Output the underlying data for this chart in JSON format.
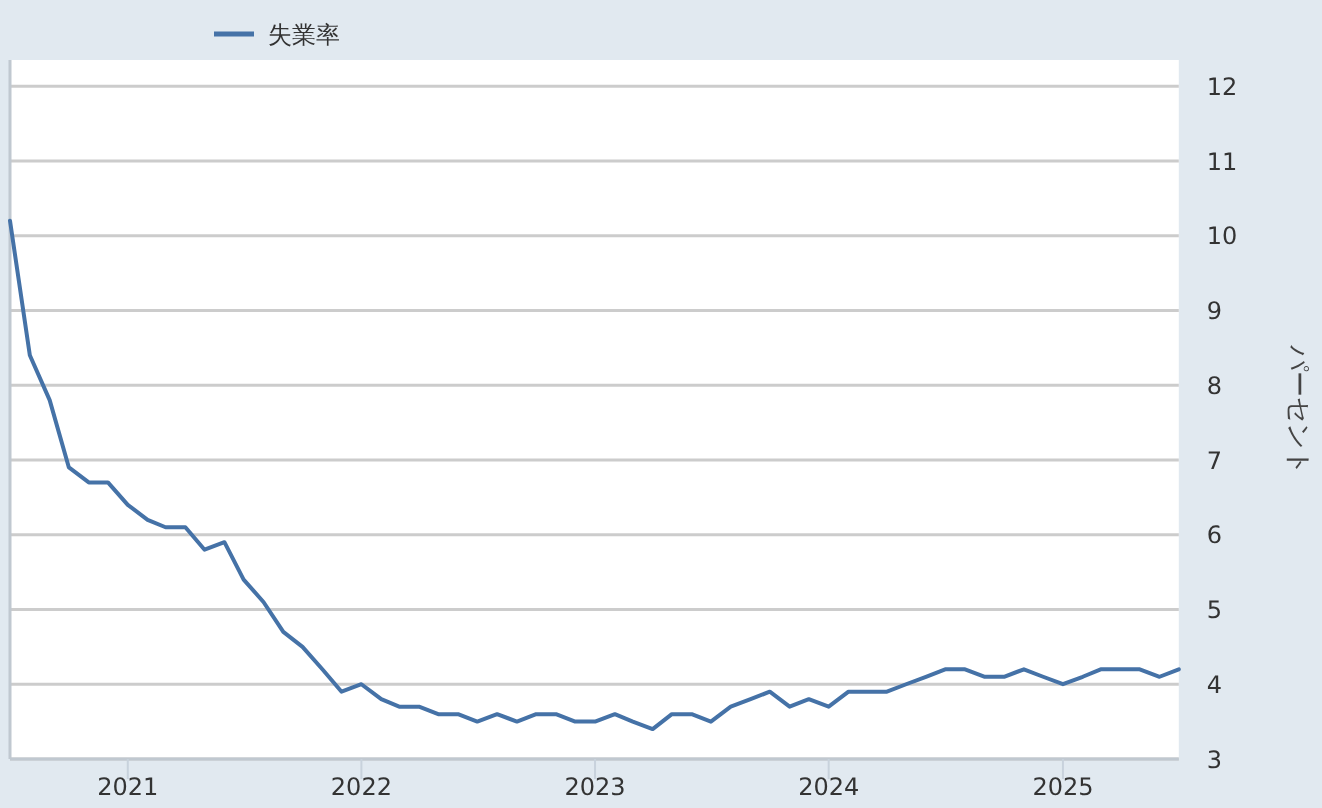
{
  "chart_data": {
    "type": "line",
    "ylabel": "パーセント",
    "x": [
      "2020-07",
      "2020-08",
      "2020-09",
      "2020-10",
      "2020-11",
      "2020-12",
      "2021-01",
      "2021-02",
      "2021-03",
      "2021-04",
      "2021-05",
      "2021-06",
      "2021-07",
      "2021-08",
      "2021-09",
      "2021-10",
      "2021-11",
      "2021-12",
      "2022-01",
      "2022-02",
      "2022-03",
      "2022-04",
      "2022-05",
      "2022-06",
      "2022-07",
      "2022-08",
      "2022-09",
      "2022-10",
      "2022-11",
      "2022-12",
      "2023-01",
      "2023-02",
      "2023-03",
      "2023-04",
      "2023-05",
      "2023-06",
      "2023-07",
      "2023-08",
      "2023-09",
      "2023-10",
      "2023-11",
      "2023-12",
      "2024-01",
      "2024-02",
      "2024-03",
      "2024-04",
      "2024-05",
      "2024-06",
      "2024-07",
      "2024-08",
      "2024-09",
      "2024-10",
      "2024-11",
      "2024-12",
      "2025-01",
      "2025-02",
      "2025-03",
      "2025-04",
      "2025-05",
      "2025-06",
      "2025-07"
    ],
    "series": [
      {
        "name": "失業率",
        "color": "#4572a7",
        "values": [
          10.2,
          8.4,
          7.8,
          6.9,
          6.7,
          6.7,
          6.4,
          6.2,
          6.1,
          6.1,
          5.8,
          5.9,
          5.4,
          5.1,
          4.7,
          4.5,
          4.2,
          3.9,
          4.0,
          3.8,
          3.7,
          3.7,
          3.6,
          3.6,
          3.5,
          3.6,
          3.5,
          3.6,
          3.6,
          3.5,
          3.5,
          3.6,
          3.5,
          3.4,
          3.6,
          3.6,
          3.5,
          3.7,
          3.8,
          3.9,
          3.7,
          3.8,
          3.7,
          3.9,
          3.9,
          3.9,
          4.0,
          4.1,
          4.2,
          4.2,
          4.1,
          4.1,
          4.2,
          4.1,
          4.0,
          4.1,
          4.2,
          4.2,
          4.2,
          4.1,
          4.2
        ]
      }
    ],
    "xlim": [
      "2020-07",
      "2025-07"
    ],
    "xticks": [
      "2021",
      "2022",
      "2023",
      "2024",
      "2025"
    ],
    "ylim": [
      3,
      12.35
    ],
    "yticks": [
      3,
      4,
      5,
      6,
      7,
      8,
      9,
      10,
      11,
      12
    ],
    "grid": "y",
    "legend": "top left"
  }
}
